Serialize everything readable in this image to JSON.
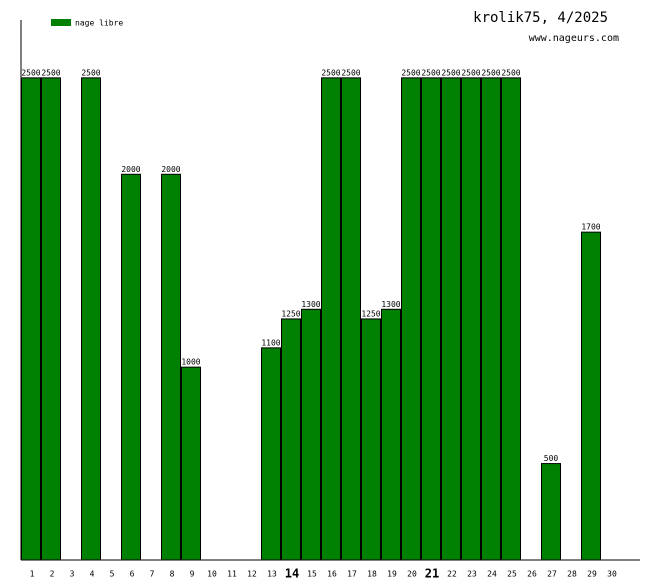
{
  "chart_data": {
    "type": "bar",
    "title": "krolik75, 4/2025",
    "subtitle": "www.nageurs.com",
    "legend": "nage libre",
    "color": "#008000",
    "categories": [
      "1",
      "2",
      "3",
      "4",
      "5",
      "6",
      "7",
      "8",
      "9",
      "10",
      "11",
      "12",
      "13",
      "14",
      "15",
      "16",
      "17",
      "18",
      "19",
      "20",
      "21",
      "22",
      "23",
      "24",
      "25",
      "26",
      "27",
      "28",
      "29",
      "30"
    ],
    "values": [
      2500,
      2500,
      null,
      2500,
      null,
      2000,
      null,
      2000,
      1000,
      null,
      null,
      null,
      1100,
      1250,
      1300,
      2500,
      2500,
      1250,
      1300,
      2500,
      2500,
      2500,
      2500,
      2500,
      2500,
      null,
      500,
      null,
      1700,
      null
    ],
    "emphasized_categories": [
      "14",
      "21"
    ],
    "ylim": [
      0,
      2800
    ]
  }
}
